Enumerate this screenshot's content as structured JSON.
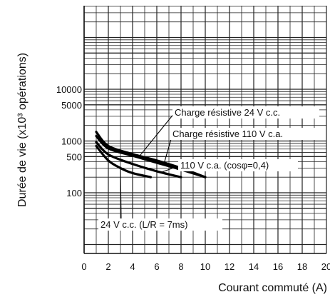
{
  "chart_data": {
    "type": "line",
    "xlabel": "Courant commuté (A)",
    "ylabel": "Durée de vie (x10³ opérations)",
    "xlim": [
      0,
      20
    ],
    "x_scale": "linear",
    "y_scale": "log",
    "x_ticks": [
      0,
      2,
      4,
      6,
      8,
      10,
      12,
      14,
      16,
      18,
      20
    ],
    "y_ticks": [
      100,
      500,
      1000,
      5000,
      10000
    ],
    "grid": true,
    "series": [
      {
        "name": "Charge résistive 24 V c.c.",
        "x": [
          1,
          2,
          4,
          6,
          8,
          10
        ],
        "y": [
          1500,
          800,
          560,
          420,
          300,
          200
        ]
      },
      {
        "name": "Charge résistive 110 V c.a.",
        "x": [
          1,
          2,
          4,
          6,
          8,
          10
        ],
        "y": [
          1250,
          720,
          520,
          380,
          280,
          200
        ]
      },
      {
        "name": "110 V c.a. (cosφ=0,4)",
        "x": [
          1,
          2,
          4,
          6,
          8
        ],
        "y": [
          950,
          550,
          360,
          260,
          200
        ]
      },
      {
        "name": "24 V c.c. (L/R = 7ms)",
        "x": [
          1,
          2,
          3,
          4,
          5.5
        ],
        "y": [
          800,
          420,
          300,
          240,
          200
        ]
      }
    ]
  }
}
